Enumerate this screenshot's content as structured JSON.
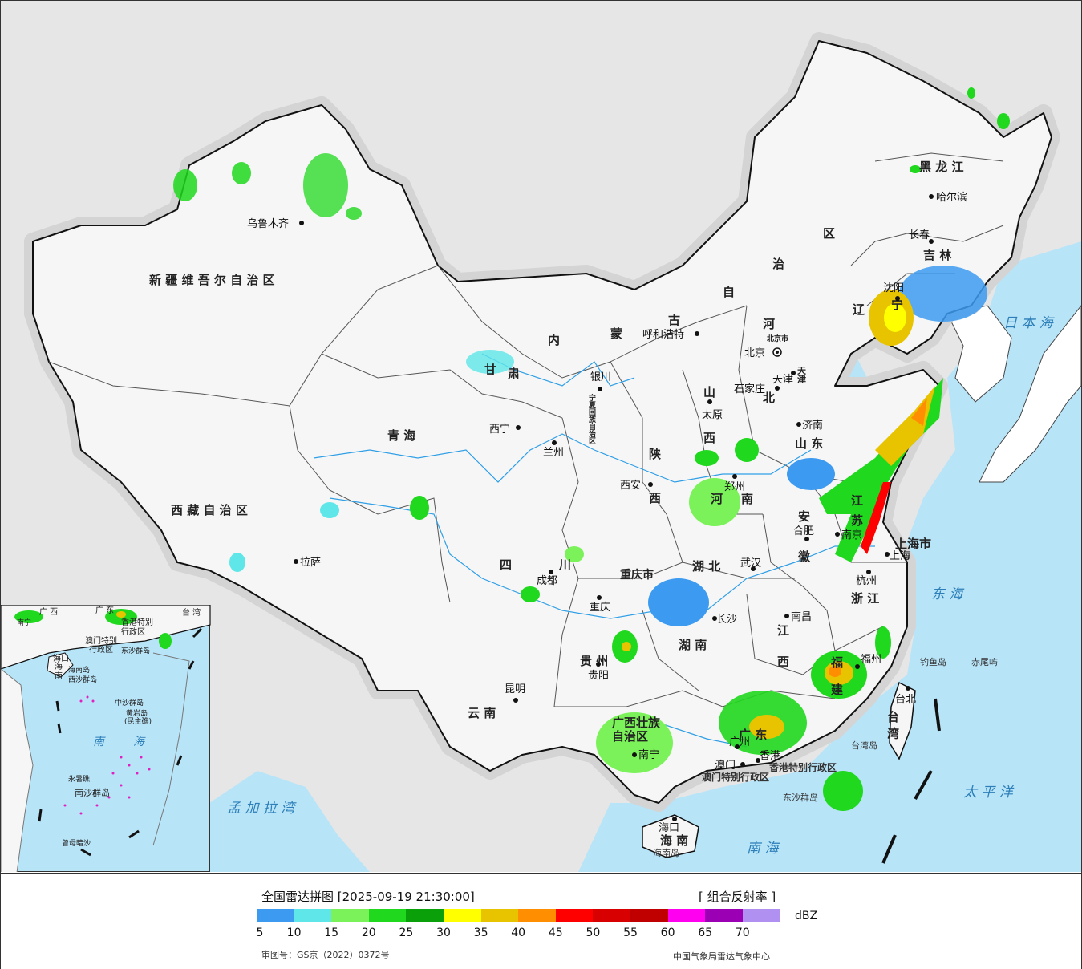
{
  "legend": {
    "title": "全国雷达拼图 [2025-09-19 21:30:00]",
    "product": "[ 组合反射率 ]",
    "unit": "dBZ",
    "ticks": [
      "5",
      "10",
      "15",
      "20",
      "25",
      "30",
      "35",
      "40",
      "45",
      "50",
      "55",
      "60",
      "65",
      "70"
    ],
    "colors": [
      "#3c9bf0",
      "#5ee6e8",
      "#7cf25a",
      "#20d81e",
      "#0aa00a",
      "#ffff00",
      "#e8c400",
      "#ff8e00",
      "#ff0000",
      "#d80000",
      "#c00000",
      "#ff00f0",
      "#9c00b4",
      "#b090f0"
    ],
    "approval": "审图号：GS京（2022）0372号",
    "org": "中国气象局雷达气象中心"
  },
  "colors": {
    "land": "#f6f6f6",
    "sea": "#b8e4f8",
    "outside": "#e6e6e6",
    "border": "#111111"
  },
  "map": {
    "provinces": [
      {
        "name": "新 疆 维 吾 尔 自 治 区"
      },
      {
        "name": "西 藏 自 治 区"
      },
      {
        "name": "青 海"
      },
      {
        "name": "甘"
      },
      {
        "name": "肃"
      },
      {
        "name": "内"
      },
      {
        "name": "蒙"
      },
      {
        "name": "古"
      },
      {
        "name": "自"
      },
      {
        "name": "治"
      },
      {
        "name": "区"
      },
      {
        "name": "黑 龙 江"
      },
      {
        "name": "吉 林"
      },
      {
        "name": "辽"
      },
      {
        "name": "宁"
      },
      {
        "name": "河"
      },
      {
        "name": "北"
      },
      {
        "name": "山"
      },
      {
        "name": "西"
      },
      {
        "name": "陕"
      },
      {
        "name": "西"
      },
      {
        "name": "宁夏回族自治区"
      },
      {
        "name": "山 东"
      },
      {
        "name": "河"
      },
      {
        "name": "南"
      },
      {
        "name": "安"
      },
      {
        "name": "徽"
      },
      {
        "name": "江"
      },
      {
        "name": "苏"
      },
      {
        "name": "上海市"
      },
      {
        "name": "浙 江"
      },
      {
        "name": "四"
      },
      {
        "name": "川"
      },
      {
        "name": "重庆市"
      },
      {
        "name": "湖 北"
      },
      {
        "name": "湖 南"
      },
      {
        "name": "江"
      },
      {
        "name": "西"
      },
      {
        "name": "福"
      },
      {
        "name": "建"
      },
      {
        "name": "贵 州"
      },
      {
        "name": "云 南"
      },
      {
        "name": "广西壮族"
      },
      {
        "name": "自治区"
      },
      {
        "name": "广 东"
      },
      {
        "name": "海 南"
      },
      {
        "name": "台 湾"
      },
      {
        "name": "天津"
      },
      {
        "name": "北京市"
      }
    ],
    "cities": [
      {
        "name": "乌鲁木齐"
      },
      {
        "name": "拉萨"
      },
      {
        "name": "西宁"
      },
      {
        "name": "兰州"
      },
      {
        "name": "银川"
      },
      {
        "name": "呼和浩特"
      },
      {
        "name": "北京"
      },
      {
        "name": "天津"
      },
      {
        "name": "石家庄"
      },
      {
        "name": "太原"
      },
      {
        "name": "济南"
      },
      {
        "name": "郑州"
      },
      {
        "name": "西安"
      },
      {
        "name": "合肥"
      },
      {
        "name": "南京"
      },
      {
        "name": "上海"
      },
      {
        "name": "杭州"
      },
      {
        "name": "成都"
      },
      {
        "name": "重庆"
      },
      {
        "name": "武汉"
      },
      {
        "name": "长沙"
      },
      {
        "name": "南昌"
      },
      {
        "name": "福州"
      },
      {
        "name": "贵阳"
      },
      {
        "name": "昆明"
      },
      {
        "name": "南宁"
      },
      {
        "name": "广州"
      },
      {
        "name": "澳门"
      },
      {
        "name": "香港"
      },
      {
        "name": "海口"
      },
      {
        "name": "台北"
      },
      {
        "name": "沈阳"
      },
      {
        "name": "长春"
      },
      {
        "name": "哈尔滨"
      }
    ],
    "seas": [
      {
        "name": "日 本 海"
      },
      {
        "name": "东 海"
      },
      {
        "name": "太 平 洋"
      },
      {
        "name": "南 海"
      },
      {
        "name": "孟 加 拉 湾"
      },
      {
        "name": "南"
      },
      {
        "name": "海"
      }
    ],
    "islands": [
      {
        "name": "钓鱼岛"
      },
      {
        "name": "赤尾屿"
      },
      {
        "name": "台湾岛"
      },
      {
        "name": "东沙群岛"
      },
      {
        "name": "海南岛"
      },
      {
        "name": "香港特别行政区"
      },
      {
        "name": "澳门特别行政区"
      }
    ],
    "inset_labels": [
      {
        "name": "广 西"
      },
      {
        "name": "广 东"
      },
      {
        "name": "台 湾"
      },
      {
        "name": "香港特别"
      },
      {
        "name": "行政区"
      },
      {
        "name": "澳门特别"
      },
      {
        "name": "行政区"
      },
      {
        "name": "海口"
      },
      {
        "name": "海"
      },
      {
        "name": "南"
      },
      {
        "name": "西沙群岛"
      },
      {
        "name": "中沙群岛"
      },
      {
        "name": "黄岩岛"
      },
      {
        "name": "南沙群岛"
      },
      {
        "name": "曾母暗沙"
      },
      {
        "name": "东沙群岛"
      },
      {
        "name": "永暑礁"
      },
      {
        "name": "(民主礁)"
      },
      {
        "name": "海南岛"
      },
      {
        "name": "南宁"
      }
    ]
  }
}
